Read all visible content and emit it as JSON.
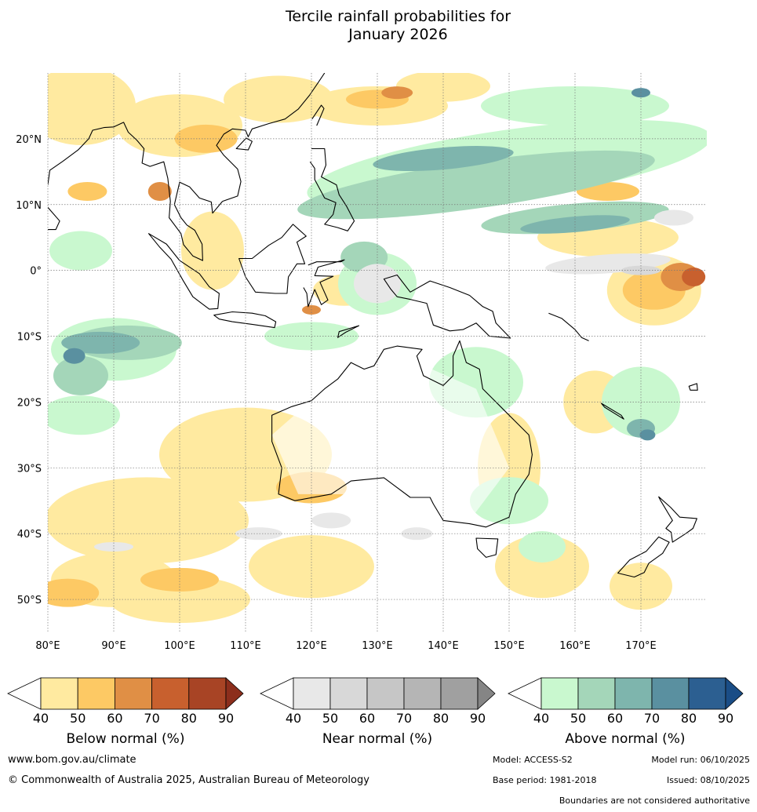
{
  "title": {
    "line1": "Tercile rainfall probabilities for",
    "line2": "January 2026"
  },
  "map": {
    "extent": {
      "lon": [
        80,
        180
      ],
      "lat": [
        -55,
        30
      ]
    },
    "lon_ticks": [
      "80°E",
      "90°E",
      "100°E",
      "110°E",
      "120°E",
      "130°E",
      "140°E",
      "150°E",
      "160°E",
      "170°E"
    ],
    "lat_ticks": [
      "20°N",
      "10°N",
      "0°",
      "10°S",
      "20°S",
      "30°S",
      "40°S",
      "50°S"
    ],
    "lat_values": [
      20,
      10,
      0,
      -10,
      -20,
      -30,
      -40,
      -50
    ],
    "lon_values": [
      80,
      90,
      100,
      110,
      120,
      130,
      140,
      150,
      160,
      170
    ]
  },
  "colorbars": [
    {
      "name": "below",
      "label": "Below normal (%)",
      "ticks": [
        "40",
        "50",
        "60",
        "70",
        "80",
        "90"
      ],
      "colors": [
        "#ffeaa0",
        "#fdc964",
        "#e08f45",
        "#c8602e",
        "#a84425"
      ],
      "over": "#8c2e1c"
    },
    {
      "name": "near",
      "label": "Near normal (%)",
      "ticks": [
        "40",
        "50",
        "60",
        "70",
        "80",
        "90"
      ],
      "colors": [
        "#e8e8e8",
        "#d8d8d8",
        "#c6c6c6",
        "#b5b5b5",
        "#a0a0a0"
      ],
      "over": "#858585"
    },
    {
      "name": "above",
      "label": "Above normal (%)",
      "ticks": [
        "40",
        "50",
        "60",
        "70",
        "80",
        "90"
      ],
      "colors": [
        "#c9f8cf",
        "#a4d6b9",
        "#7eb5ad",
        "#5a90a0",
        "#2c5f91"
      ],
      "over": "#1a4d86"
    }
  ],
  "footer": {
    "url": "www.bom.gov.au/climate",
    "copyright": "© Commonwealth of Australia 2025, Australian Bureau of Meteorology",
    "model": "Model: ACCESS-S2",
    "model_run": "Model run: 06/10/2025",
    "base_period": "Base period: 1981-2018",
    "issued": "Issued: 08/10/2025",
    "boundaries": "Boundaries are not considered authoritative"
  }
}
